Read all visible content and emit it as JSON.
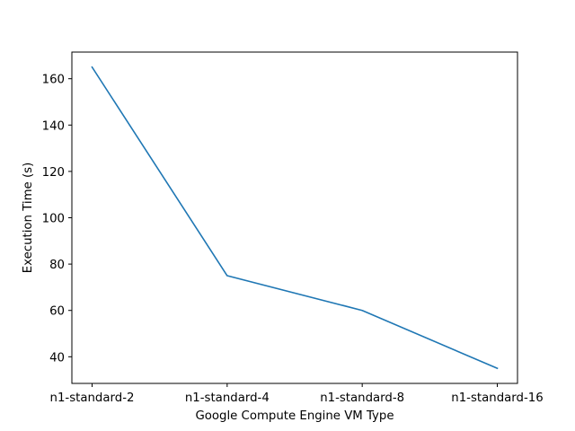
{
  "chart_data": {
    "type": "line",
    "title": "",
    "xlabel": "Google Compute Engine VM Type",
    "ylabel": "Execution Time (s)",
    "categories": [
      "n1-standard-2",
      "n1-standard-4",
      "n1-standard-8",
      "n1-standard-16"
    ],
    "series": [
      {
        "values": [
          165,
          75,
          60,
          35
        ],
        "color": "#1f77b4"
      }
    ],
    "ylim": [
      28.5,
      171.5
    ],
    "yticks": [
      40,
      60,
      80,
      100,
      120,
      140,
      160
    ],
    "grid": false,
    "legend": "none"
  }
}
